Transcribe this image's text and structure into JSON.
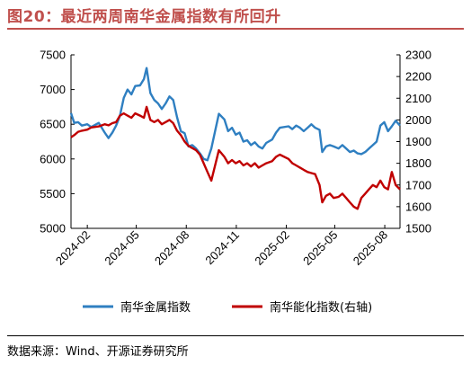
{
  "header": {
    "title": "图20：最近两周南华金属指数有所回升"
  },
  "footer": {
    "source": "数据来源：Wind、开源证券研究所"
  },
  "colors": {
    "title": "#c0504d",
    "series_metal": "#2f7fc1",
    "series_energy": "#c00000",
    "axis": "#000000"
  },
  "chart_data": {
    "type": "line",
    "title": "",
    "xlabel": "",
    "ylabel": "",
    "y2label": "",
    "x_range": [
      "2024-01-02",
      "2025-08-29"
    ],
    "x_ticks": [
      "2024-02",
      "2024-05",
      "2024-08",
      "2024-11",
      "2025-02",
      "2025-05",
      "2025-08"
    ],
    "ylim": [
      5000,
      7500
    ],
    "yticks": [
      5000,
      5500,
      6000,
      6500,
      7000,
      7500
    ],
    "y2lim": [
      1500,
      2300
    ],
    "y2ticks": [
      1500,
      1600,
      1700,
      1800,
      1900,
      2000,
      2100,
      2200,
      2300
    ],
    "grid": false,
    "legend": "bottom",
    "series": [
      {
        "name": "南华金属指数",
        "axis": "left",
        "points": [
          [
            "2024-01-02",
            6660
          ],
          [
            "2024-01-08",
            6520
          ],
          [
            "2024-01-15",
            6530
          ],
          [
            "2024-01-22",
            6480
          ],
          [
            "2024-02-01",
            6500
          ],
          [
            "2024-02-08",
            6460
          ],
          [
            "2024-02-22",
            6520
          ],
          [
            "2024-03-04",
            6380
          ],
          [
            "2024-03-11",
            6300
          ],
          [
            "2024-03-18",
            6380
          ],
          [
            "2024-03-25",
            6480
          ],
          [
            "2024-04-01",
            6620
          ],
          [
            "2024-04-08",
            6880
          ],
          [
            "2024-04-15",
            7000
          ],
          [
            "2024-04-22",
            6930
          ],
          [
            "2024-04-29",
            7050
          ],
          [
            "2024-05-08",
            7060
          ],
          [
            "2024-05-15",
            7150
          ],
          [
            "2024-05-20",
            7310
          ],
          [
            "2024-05-27",
            6950
          ],
          [
            "2024-06-03",
            6850
          ],
          [
            "2024-06-10",
            6800
          ],
          [
            "2024-06-17",
            6720
          ],
          [
            "2024-06-24",
            6800
          ],
          [
            "2024-07-01",
            6900
          ],
          [
            "2024-07-08",
            6850
          ],
          [
            "2024-07-15",
            6600
          ],
          [
            "2024-07-22",
            6400
          ],
          [
            "2024-07-29",
            6370
          ],
          [
            "2024-08-05",
            6180
          ],
          [
            "2024-08-12",
            6200
          ],
          [
            "2024-08-19",
            6150
          ],
          [
            "2024-08-26",
            6080
          ],
          [
            "2024-09-02",
            6000
          ],
          [
            "2024-09-09",
            5980
          ],
          [
            "2024-09-16",
            6150
          ],
          [
            "2024-09-23",
            6400
          ],
          [
            "2024-09-30",
            6650
          ],
          [
            "2024-10-10",
            6570
          ],
          [
            "2024-10-17",
            6400
          ],
          [
            "2024-10-24",
            6450
          ],
          [
            "2024-10-31",
            6350
          ],
          [
            "2024-11-07",
            6380
          ],
          [
            "2024-11-14",
            6250
          ],
          [
            "2024-11-21",
            6270
          ],
          [
            "2024-11-28",
            6200
          ],
          [
            "2024-12-05",
            6240
          ],
          [
            "2024-12-12",
            6180
          ],
          [
            "2024-12-19",
            6150
          ],
          [
            "2024-12-26",
            6230
          ],
          [
            "2025-01-06",
            6280
          ],
          [
            "2025-01-13",
            6380
          ],
          [
            "2025-01-20",
            6450
          ],
          [
            "2025-02-05",
            6470
          ],
          [
            "2025-02-12",
            6430
          ],
          [
            "2025-02-19",
            6480
          ],
          [
            "2025-02-26",
            6450
          ],
          [
            "2025-03-05",
            6400
          ],
          [
            "2025-03-12",
            6450
          ],
          [
            "2025-03-19",
            6500
          ],
          [
            "2025-03-26",
            6450
          ],
          [
            "2025-04-03",
            6420
          ],
          [
            "2025-04-08",
            6100
          ],
          [
            "2025-04-15",
            6180
          ],
          [
            "2025-04-22",
            6200
          ],
          [
            "2025-04-29",
            6180
          ],
          [
            "2025-05-08",
            6150
          ],
          [
            "2025-05-15",
            6200
          ],
          [
            "2025-05-22",
            6150
          ],
          [
            "2025-05-29",
            6100
          ],
          [
            "2025-06-05",
            6120
          ],
          [
            "2025-06-12",
            6080
          ],
          [
            "2025-06-19",
            6070
          ],
          [
            "2025-06-26",
            6100
          ],
          [
            "2025-07-03",
            6150
          ],
          [
            "2025-07-10",
            6200
          ],
          [
            "2025-07-17",
            6250
          ],
          [
            "2025-07-24",
            6480
          ],
          [
            "2025-07-31",
            6530
          ],
          [
            "2025-08-07",
            6400
          ],
          [
            "2025-08-14",
            6470
          ],
          [
            "2025-08-21",
            6550
          ],
          [
            "2025-08-29",
            6480
          ]
        ]
      },
      {
        "name": "南华能化指数(右轴)",
        "axis": "right",
        "points": [
          [
            "2024-01-02",
            1920
          ],
          [
            "2024-01-08",
            1930
          ],
          [
            "2024-01-15",
            1945
          ],
          [
            "2024-01-22",
            1950
          ],
          [
            "2024-02-01",
            1955
          ],
          [
            "2024-02-08",
            1965
          ],
          [
            "2024-02-22",
            1970
          ],
          [
            "2024-03-04",
            1980
          ],
          [
            "2024-03-11",
            1975
          ],
          [
            "2024-03-18",
            1985
          ],
          [
            "2024-03-25",
            1990
          ],
          [
            "2024-04-01",
            2020
          ],
          [
            "2024-04-08",
            2030
          ],
          [
            "2024-04-15",
            2020
          ],
          [
            "2024-04-22",
            2010
          ],
          [
            "2024-04-29",
            2030
          ],
          [
            "2024-05-08",
            2020
          ],
          [
            "2024-05-15",
            2010
          ],
          [
            "2024-05-20",
            2060
          ],
          [
            "2024-05-27",
            2000
          ],
          [
            "2024-06-03",
            1990
          ],
          [
            "2024-06-10",
            2000
          ],
          [
            "2024-06-17",
            1980
          ],
          [
            "2024-06-24",
            1990
          ],
          [
            "2024-07-01",
            2000
          ],
          [
            "2024-07-08",
            1985
          ],
          [
            "2024-07-15",
            1950
          ],
          [
            "2024-07-22",
            1930
          ],
          [
            "2024-07-29",
            1900
          ],
          [
            "2024-08-05",
            1880
          ],
          [
            "2024-08-12",
            1870
          ],
          [
            "2024-08-19",
            1860
          ],
          [
            "2024-08-26",
            1840
          ],
          [
            "2024-09-02",
            1800
          ],
          [
            "2024-09-09",
            1760
          ],
          [
            "2024-09-16",
            1720
          ],
          [
            "2024-09-23",
            1790
          ],
          [
            "2024-09-30",
            1860
          ],
          [
            "2024-10-10",
            1830
          ],
          [
            "2024-10-17",
            1800
          ],
          [
            "2024-10-24",
            1815
          ],
          [
            "2024-10-31",
            1800
          ],
          [
            "2024-11-07",
            1810
          ],
          [
            "2024-11-14",
            1790
          ],
          [
            "2024-11-21",
            1800
          ],
          [
            "2024-11-28",
            1785
          ],
          [
            "2024-12-05",
            1800
          ],
          [
            "2024-12-12",
            1780
          ],
          [
            "2024-12-19",
            1790
          ],
          [
            "2024-12-26",
            1800
          ],
          [
            "2025-01-06",
            1810
          ],
          [
            "2025-01-13",
            1830
          ],
          [
            "2025-01-20",
            1840
          ],
          [
            "2025-02-05",
            1820
          ],
          [
            "2025-02-12",
            1800
          ],
          [
            "2025-02-19",
            1790
          ],
          [
            "2025-02-26",
            1780
          ],
          [
            "2025-03-05",
            1770
          ],
          [
            "2025-03-12",
            1760
          ],
          [
            "2025-03-19",
            1755
          ],
          [
            "2025-03-26",
            1750
          ],
          [
            "2025-04-03",
            1700
          ],
          [
            "2025-04-08",
            1620
          ],
          [
            "2025-04-15",
            1650
          ],
          [
            "2025-04-22",
            1660
          ],
          [
            "2025-04-29",
            1640
          ],
          [
            "2025-05-08",
            1645
          ],
          [
            "2025-05-15",
            1660
          ],
          [
            "2025-05-22",
            1640
          ],
          [
            "2025-05-29",
            1620
          ],
          [
            "2025-06-05",
            1600
          ],
          [
            "2025-06-12",
            1590
          ],
          [
            "2025-06-19",
            1640
          ],
          [
            "2025-06-26",
            1660
          ],
          [
            "2025-07-03",
            1680
          ],
          [
            "2025-07-10",
            1700
          ],
          [
            "2025-07-17",
            1690
          ],
          [
            "2025-07-24",
            1720
          ],
          [
            "2025-07-31",
            1690
          ],
          [
            "2025-08-07",
            1680
          ],
          [
            "2025-08-14",
            1760
          ],
          [
            "2025-08-21",
            1700
          ],
          [
            "2025-08-29",
            1680
          ]
        ]
      }
    ]
  }
}
